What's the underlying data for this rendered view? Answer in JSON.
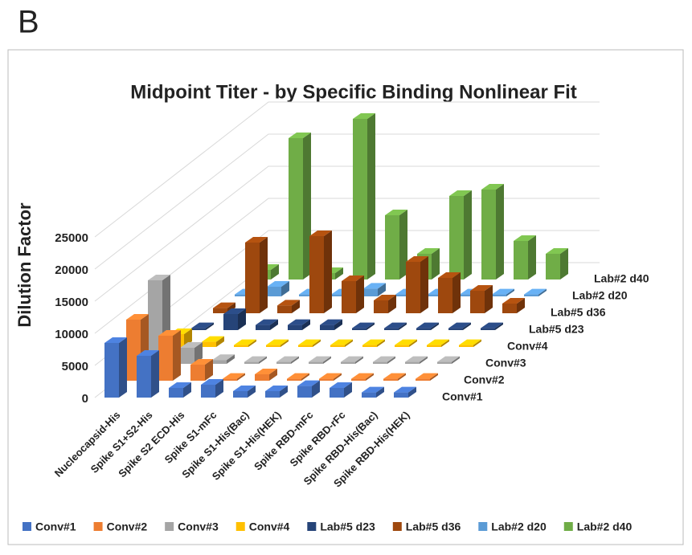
{
  "panel_label": "B",
  "chart_data": {
    "type": "bar3d",
    "title": "Midpoint Titer - by Specific Binding Nonlinear Fit",
    "y_label": "Dilution Factor",
    "categories": [
      "Nucleocapsid-His",
      "Spike S1+S2-His",
      "Spike S2 ECD-His",
      "Spike S1-mFc",
      "Spike S1-His(Bac)",
      "Spike S1-His(HEK)",
      "Spike RBD-mFc",
      "Spike RBD-rFc",
      "Spike RBD-His(Bac)",
      "Spike RBD-His(HEK)"
    ],
    "series": [
      {
        "name": "Conv#1",
        "color": "#4472c4",
        "values": [
          8500,
          6500,
          1500,
          2000,
          1000,
          1000,
          1800,
          1500,
          800,
          800
        ]
      },
      {
        "name": "Conv#2",
        "color": "#ed7d31",
        "values": [
          9500,
          7000,
          2500,
          300,
          1000,
          300,
          300,
          300,
          300,
          300
        ]
      },
      {
        "name": "Conv#3",
        "color": "#a5a5a5",
        "values": [
          13000,
          2500,
          600,
          300,
          300,
          300,
          300,
          300,
          300,
          300
        ]
      },
      {
        "name": "Conv#4",
        "color": "#ffc000",
        "values": [
          2000,
          800,
          300,
          300,
          300,
          300,
          300,
          300,
          300,
          300
        ]
      },
      {
        "name": "Lab#5 d23",
        "color": "#264478",
        "values": [
          300,
          2500,
          800,
          800,
          800,
          300,
          300,
          300,
          300,
          300
        ]
      },
      {
        "name": "Lab#5 d36",
        "color": "#9e480e",
        "values": [
          800,
          11000,
          1200,
          12000,
          5000,
          2000,
          8000,
          5500,
          3500,
          1500
        ]
      },
      {
        "name": "Lab#2 d20",
        "color": "#5b9bd5",
        "values": [
          300,
          1500,
          300,
          300,
          1200,
          300,
          300,
          300,
          300,
          300
        ]
      },
      {
        "name": "Lab#2 d40",
        "color": "#70ad47",
        "values": [
          1500,
          22000,
          1000,
          25000,
          10000,
          4000,
          13000,
          14000,
          6000,
          4000
        ]
      }
    ],
    "ylim": [
      0,
      25000
    ],
    "yticks": [
      0,
      5000,
      10000,
      15000,
      20000,
      25000
    ],
    "grid": true
  }
}
